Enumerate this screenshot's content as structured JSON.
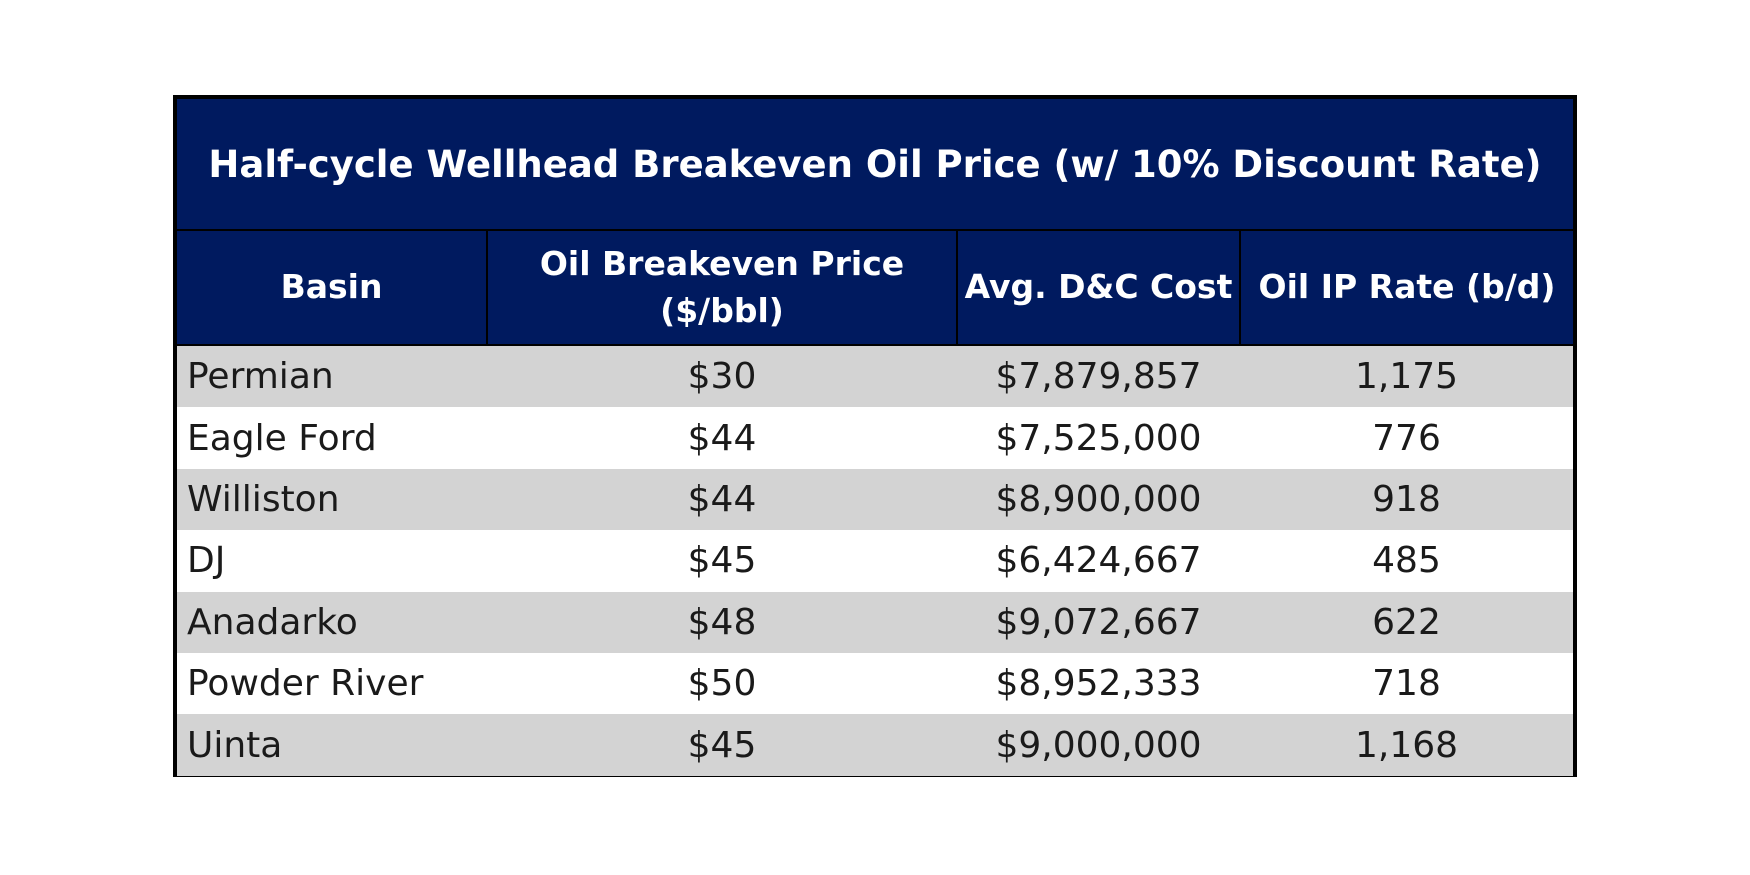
{
  "chart_data": {
    "type": "table",
    "title": "Half-cycle Wellhead Breakeven Oil Price (w/ 10% Discount Rate)",
    "columns": [
      "Basin",
      "Oil Breakeven Price ($/bbl)",
      "Avg. D&C Cost",
      "Oil IP Rate (b/d)"
    ],
    "header_lines": {
      "price_line1": "Oil Breakeven Price",
      "price_line2": "($/bbl)"
    },
    "rows": [
      {
        "basin": "Permian",
        "price": "$30",
        "cost": "$7,879,857",
        "ip": "1,175"
      },
      {
        "basin": "Eagle Ford",
        "price": "$44",
        "cost": "$7,525,000",
        "ip": "776"
      },
      {
        "basin": "Williston",
        "price": "$44",
        "cost": "$8,900,000",
        "ip": "918"
      },
      {
        "basin": "DJ",
        "price": "$45",
        "cost": "$6,424,667",
        "ip": "485"
      },
      {
        "basin": "Anadarko",
        "price": "$48",
        "cost": "$9,072,667",
        "ip": "622"
      },
      {
        "basin": "Powder River",
        "price": "$50",
        "cost": "$8,952,333",
        "ip": "718"
      },
      {
        "basin": "Uinta",
        "price": "$45",
        "cost": "$9,000,000",
        "ip": "1,168"
      }
    ]
  },
  "colors": {
    "header_bg": "#001a5f",
    "header_text": "#ffffff",
    "row_shade": "#d3d3d3",
    "row_plain": "#ffffff"
  }
}
